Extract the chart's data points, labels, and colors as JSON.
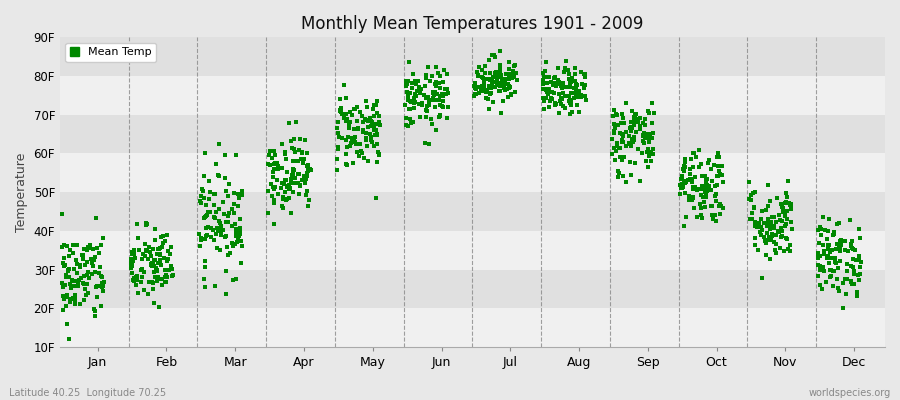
{
  "title": "Monthly Mean Temperatures 1901 - 2009",
  "ylabel": "Temperature",
  "xlabel_bottom_left": "Latitude 40.25  Longitude 70.25",
  "xlabel_bottom_right": "worldspecies.org",
  "legend_label": "Mean Temp",
  "dot_color": "#008800",
  "background_color": "#e8e8e8",
  "band_color_light": "#f0f0f0",
  "band_color_dark": "#e0e0e0",
  "ylim": [
    10,
    90
  ],
  "yticks": [
    10,
    20,
    30,
    40,
    50,
    60,
    70,
    80,
    90
  ],
  "ytick_labels": [
    "10F",
    "20F",
    "30F",
    "40F",
    "50F",
    "60F",
    "70F",
    "80F",
    "90F"
  ],
  "months": [
    "Jan",
    "Feb",
    "Mar",
    "Apr",
    "May",
    "Jun",
    "Jul",
    "Aug",
    "Sep",
    "Oct",
    "Nov",
    "Dec"
  ],
  "n_months": 12,
  "monthly_mean_temps": [
    28,
    31,
    43,
    55,
    66,
    74,
    79,
    76,
    64,
    52,
    42,
    33
  ],
  "monthly_std": [
    6,
    5,
    7,
    5,
    5,
    4,
    3,
    3,
    5,
    5,
    5,
    5
  ],
  "n_years": 109,
  "seed": 42,
  "dot_size": 6,
  "dashed_line_color": "#888888"
}
